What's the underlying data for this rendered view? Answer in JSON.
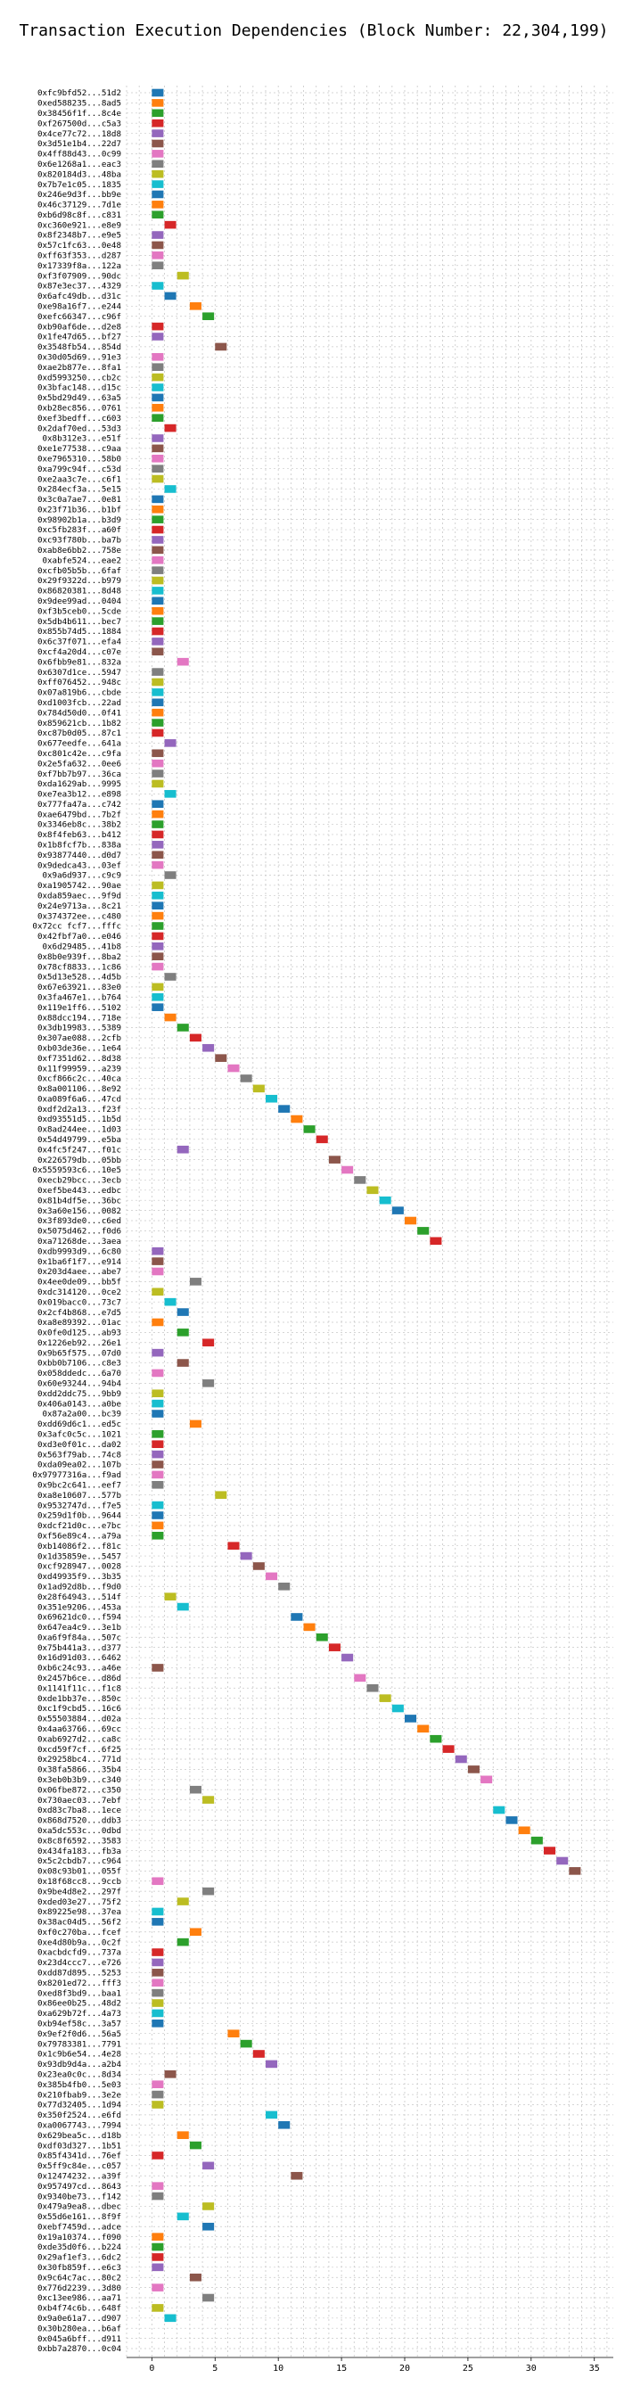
{
  "chart_data": {
    "type": "bar",
    "subtype": "horizontal-gantt",
    "title": "Transaction Execution Dependencies (Block Number: 22,304,199)",
    "xlabel": "",
    "ylabel": "",
    "xlim": [
      -2,
      36.5
    ],
    "xticks": [
      0,
      5,
      10,
      15,
      20,
      25,
      30,
      35
    ],
    "grid": true,
    "legend": "none",
    "colors": [
      "#1f77b4",
      "#ff7f0e",
      "#2ca02c",
      "#d62728",
      "#9467bd",
      "#8c564b",
      "#e377c2",
      "#7f7f7f",
      "#bcbd22",
      "#17becf"
    ],
    "transactions": [
      "0xfc9bfd52...51d2",
      "0xed588235...8ad5",
      "0x38456f1f...8c4e",
      "0xf267500d...c5a3",
      "0x4ce77c72...18d8",
      "0x3d51e1b4...22d7",
      "0x4ff88d43...0c99",
      "0x6e1268a1...eac3",
      "0x820184d3...48ba",
      "0x7b7e1c05...1835",
      "0x246e9d3f...bb9e",
      "0x46c37129...7d1e",
      "0xb6d98c8f...c831",
      "0xc360e921...e8e9",
      "0x8f2348b7...e9e5",
      "0x57c1fc63...0e48",
      "0xff63f353...d287",
      "0x17339f8a...122a",
      "0xf3f07909...90dc",
      "0x87e3ec37...4329",
      "0x6afc49db...d31c",
      "0xe98a16f7...e244",
      "0xefc66347...c96f",
      "0xb90af6de...d2e8",
      "0x1fe47d65...bf27",
      "0x3548fb54...854d",
      "0x30d05d69...91e3",
      "0xae2b877e...8fa1",
      "0xd5993250...cb2c",
      "0x3bfac148...d15c",
      "0x5bd29d49...63a5",
      "0xb28ec856...0761",
      "0xef3bedff...c603",
      "0x2daf70ed...53d3",
      "0x8b312e3...e51f",
      "0xe1e77538...c9aa",
      "0xe7965310...58b0",
      "0xa799c94f...c53d",
      "0xe2aa3c7e...c6f1",
      "0x284ecf3a...5e15",
      "0x3c0a7ae7...0e81",
      "0x23f71b36...b1bf",
      "0x98902b1a...b3d9",
      "0xc5fb283f...a60f",
      "0xc93f780b...ba7b",
      "0xab8e6bb2...758e",
      "0xabfe524...eae2",
      "0xcfb05b5b...6faf",
      "0x29f9322d...b979",
      "0x86820381...8d48",
      "0x9dee99ad...0404",
      "0xf3b5ceb0...5cde",
      "0x5db4b611...bec7",
      "0x855b74d5...1884",
      "0x6c37f071...efa4",
      "0xcf4a20d4...c07e",
      "0x6fbb9e81...832a",
      "0x6307d1ce...5947",
      "0xff076452...948c",
      "0x07a819b6...cbde",
      "0xd1003fcb...22ad",
      "0x784d50d0...0f41",
      "0x859621cb...1b82",
      "0xc87b0d05...87c1",
      "0x677eedfe...641a",
      "0xc801c42e...c9fa",
      "0x2e5fa632...0ee6",
      "0xf7bb7b97...36ca",
      "0xda1629ab...9995",
      "0xe7ea3b12...e898",
      "0x777fa47a...c742",
      "0xae6479bd...7b2f",
      "0x3346eb8c...38b2",
      "0x8f4feb63...b412",
      "0x1b8fcf7b...838a",
      "0x93877440...d0d7",
      "0x9dedca43...03ef",
      "0x9a6d937...c9c9",
      "0xa1905742...90ae",
      "0xda859aec...9f9d",
      "0x24e9713a...8c21",
      "0x374372ee...c480",
      "0x72cc fcf7...fffc",
      "0x42fbf7a0...e046",
      "0x6d29485...41b8",
      "0x8b0e939f...8ba2",
      "0x78cf8833...1c86",
      "0x5d13e528...4d5b",
      "0x67e63921...83e0",
      "0x3fa467e1...b764",
      "0x119e1ff6...5102",
      "0x88dcc194...718e",
      "0x3db19983...5389",
      "0x307ae088...2cfb",
      "0xb03de36e...1e64",
      "0xf7351d62...8d38",
      "0x11f99959...a239",
      "0xcf866c2c...40ca",
      "0x8a001106...8e92",
      "0xa089f6a6...47cd",
      "0xdf2d2a13...f23f",
      "0xd93551d5...1b5d",
      "0x8ad244ee...1d03",
      "0x54d49799...e5ba",
      "0x4fc5f247...f01c",
      "0x226579db...05bb",
      "0x5559593c6...10e5",
      "0xecb29bcc...3ecb",
      "0xef5be443...edbc",
      "0x81b4df5e...36bc",
      "0x3a60e156...0082",
      "0x3f893de0...c6ed",
      "0x5075d462...f0d6",
      "0xa71268de...3aea",
      "0xdb9993d9...6c80",
      "0x1ba6f1f7...e914",
      "0x203d4aee...abe7",
      "0x4ee0de09...bb5f",
      "0xdc314120...0ce2",
      "0x019bacc0...73c7",
      "0x2cf4b868...e7d5",
      "0xa8e89392...01ac",
      "0x0fe0d125...ab93",
      "0x1226eb92...26e1",
      "0x9b65f575...07d0",
      "0xbb0b7106...c8e3",
      "0x058ddedc...6a70",
      "0x60e93244...94b4",
      "0xdd2ddc75...9bb9",
      "0x406a0143...a0be",
      "0x87a2a00...bc39",
      "0xdd69d6c1...ed5c",
      "0x3afc0c5c...1021",
      "0xd3e0f01c...da02",
      "0x563f79ab...74c8",
      "0xda09ea02...107b",
      "0x97977316a...f9ad",
      "0x9bc2c641...eef7",
      "0xa8e10607...577b",
      "0x9532747d...f7e5",
      "0x259d1f0b...9644",
      "0xdcf21d0c...e7bc",
      "0xf56e89c4...a79a",
      "0xb14086f2...f81c",
      "0x1d35859e...5457",
      "0xcf928947...0028",
      "0xd49935f9...3b35",
      "0x1ad92d8b...f9d0",
      "0x28f64943...514f",
      "0x351e9206...453a",
      "0x69621dc0...f594",
      "0x647ea4c9...3e1b",
      "0xa6f9f84a...507c",
      "0x75b441a3...d377",
      "0x16d91d03...6462",
      "0xb6c24c93...a46e",
      "0x2457b6ce...d86d",
      "0x1141f11c...f1c8",
      "0xde1bb37e...850c",
      "0xc1f9cbd5...16c6",
      "0x55503884...d02a",
      "0x4aa63766...69cc",
      "0xab6927d2...ca8c",
      "0xcd59f7cf...6f25",
      "0x29258bc4...771d",
      "0x38fa5866...35b4",
      "0x3eb0b3b9...c340",
      "0x06fbe872...c350",
      "0x730aec03...7ebf",
      "0xd83c7ba8...1ece",
      "0x868d7520...ddb3",
      "0xa5dc553c...0dbd",
      "0x8c8f6592...3583",
      "0x434fa183...fb3a",
      "0x5c2cbdb7...c964",
      "0x08c93b01...055f",
      "0x18f68cc8...9ccb",
      "0x9be4d8e2...297f",
      "0xded03e27...75f2",
      "0x89225e98...37ea",
      "0x38ac04d5...56f2",
      "0xf0c270ba...fcef",
      "0xe4d80b9a...0c2f",
      "0xacbdcfd9...737a",
      "0x23d4ccc7...e726",
      "0xdd87d895...5253",
      "0x8201ed72...fff3",
      "0xed8f3bd9...baa1",
      "0x86ee0b25...48d2",
      "0xa629b72f...4a73",
      "0xb94ef58c...3a57",
      "0x9ef2f0d6...56a5",
      "0x79783381...7791",
      "0x1c9b6e54...4e28",
      "0x93db9d4a...a2b4",
      "0x23ea0c0c...8d34",
      "0x385b4fb0...5e03",
      "0x210fbab9...3e2e",
      "0x77d32405...1d94",
      "0x350f2524...e6fd",
      "0xa0067743...7994",
      "0x629bea5c...d18b",
      "0xdf03d327...1b51",
      "0x85f4341d...76ef",
      "0x5ff9c84e...c057",
      "0x12474232...a39f",
      "0x957497cd...8643",
      "0x9340be73...f142",
      "0x479a9ea8...dbec",
      "0x55d6e161...8f9f",
      "0xebf7459d...adce",
      "0x19a10374...f090",
      "0xde35d0f6...b224",
      "0x29af1ef3...6dc2",
      "0x30fb859f...e6c3",
      "0x9c64c7ac...80c2",
      "0x776d2239...3d80",
      "0xc13ee986...aa71",
      "0xb4f74c6b...648f",
      "0x9a0e61a7...d907",
      "0x30b280ea...b6af",
      "0x045a6bff...d911",
      "0xbb7a2870...0c04"
    ],
    "start": [
      0,
      0,
      0,
      0,
      0,
      0,
      0,
      0,
      0,
      0,
      0,
      0,
      0,
      1,
      0,
      0,
      0,
      0,
      2,
      0,
      1,
      3,
      4,
      0,
      0,
      5,
      0,
      0,
      0,
      0,
      0,
      0,
      0,
      1,
      0,
      0,
      0,
      0,
      0,
      1,
      0,
      0,
      0,
      0,
      0,
      0,
      0,
      0,
      0,
      0,
      0,
      0,
      0,
      0,
      0,
      0,
      2,
      0,
      0,
      0,
      0,
      0,
      0,
      0,
      1,
      0,
      0,
      0,
      0,
      1,
      0,
      0,
      0,
      0,
      0,
      0,
      0,
      1,
      0,
      0,
      0,
      0,
      0,
      0,
      0,
      0,
      0,
      1,
      0,
      0,
      0,
      1,
      2,
      3,
      4,
      5,
      6,
      7,
      8,
      9,
      10,
      11,
      12,
      13,
      2,
      14,
      15,
      16,
      17,
      18,
      19,
      20,
      21,
      22,
      0,
      0,
      0,
      3,
      0,
      1,
      2,
      0,
      2,
      4,
      0,
      2,
      0,
      4,
      0,
      0,
      0,
      3,
      0,
      0,
      0,
      0,
      0,
      0,
      5,
      0,
      0,
      0,
      0,
      6,
      7,
      8,
      9,
      10,
      1,
      2,
      11,
      12,
      13,
      14,
      15,
      0,
      16,
      17,
      18,
      19,
      20,
      21,
      22,
      23,
      24,
      25,
      26,
      3,
      4,
      27,
      28,
      29,
      30,
      31,
      32,
      33,
      0,
      4,
      2,
      0,
      0,
      3,
      2,
      0,
      0,
      0,
      0,
      0,
      0,
      0,
      0,
      6,
      7,
      8,
      9,
      1,
      0,
      0,
      0,
      9,
      10,
      2,
      3,
      0,
      4,
      11,
      0,
      0,
      4,
      2,
      4,
      0,
      0,
      0,
      0,
      3,
      0,
      4,
      0,
      1
    ],
    "duration": [
      1,
      1,
      1,
      1,
      1,
      1,
      1,
      1,
      1,
      1,
      1,
      1,
      1,
      1,
      1,
      1,
      1,
      1,
      1,
      1,
      1,
      1,
      1,
      1,
      1,
      1,
      1,
      1,
      1,
      1,
      1,
      1,
      1,
      1,
      1,
      1,
      1,
      1,
      1,
      1,
      1,
      1,
      1,
      1,
      1,
      1,
      1,
      1,
      1,
      1,
      1,
      1,
      1,
      1,
      1,
      1,
      1,
      1,
      1,
      1,
      1,
      1,
      1,
      1,
      1,
      1,
      1,
      1,
      1,
      1,
      1,
      1,
      1,
      1,
      1,
      1,
      1,
      1,
      1,
      1,
      1,
      1,
      1,
      1,
      1,
      1,
      1,
      1,
      1,
      1,
      1,
      1,
      1,
      1,
      1,
      1,
      1,
      1,
      1,
      1,
      1,
      1,
      1,
      1,
      1,
      1,
      1,
      1,
      1,
      1,
      1,
      1,
      1,
      1,
      1,
      1,
      1,
      1,
      1,
      1,
      1,
      1,
      1,
      1,
      1,
      1,
      1,
      1,
      1,
      1,
      1,
      1,
      1,
      1,
      1,
      1,
      1,
      1,
      1,
      1,
      1,
      1,
      1,
      1,
      1,
      1,
      1,
      1,
      1,
      1,
      1,
      1,
      1,
      1,
      1,
      1,
      1,
      1,
      1,
      1,
      1,
      1,
      1,
      1,
      1,
      1,
      1,
      1,
      1,
      1,
      1,
      1,
      1,
      1,
      1,
      1,
      1,
      1,
      1,
      1,
      1,
      1,
      1,
      1,
      1,
      1,
      1,
      1,
      1,
      1,
      1,
      1,
      1,
      1,
      1,
      1,
      1,
      1,
      1,
      1,
      1,
      1,
      1,
      1,
      1,
      1,
      1,
      1,
      1,
      1,
      1,
      1,
      1,
      1,
      1,
      1,
      1,
      1,
      1,
      1,
      1
    ]
  }
}
